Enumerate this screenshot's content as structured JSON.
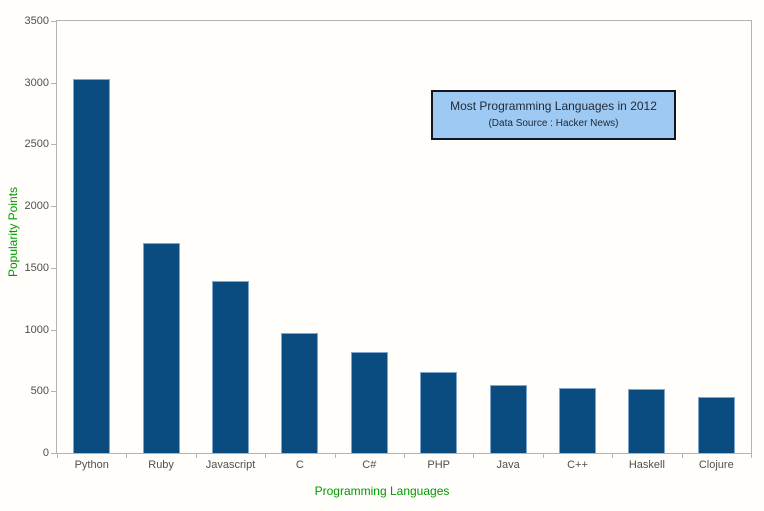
{
  "chart_data": {
    "type": "bar",
    "title": "Most Programming Languages in 2012",
    "subtitle": "(Data Source : Hacker News)",
    "xlabel": "Programming Languages",
    "ylabel": "Popularity Points",
    "categories": [
      "Python",
      "Ruby",
      "Javascript",
      "C",
      "C#",
      "PHP",
      "Java",
      "C++",
      "Haskell",
      "Clojure"
    ],
    "values": [
      3030,
      1700,
      1390,
      970,
      820,
      660,
      550,
      530,
      515,
      450
    ],
    "ylim": [
      0,
      3500
    ],
    "yticks": [
      0,
      500,
      1000,
      1500,
      2000,
      2500,
      3000,
      3500
    ],
    "grid": false,
    "legend": "none",
    "colors": {
      "background": "#fffefa",
      "bar_fill": "#0a4c7f",
      "bar_border": "#7fa7cb",
      "axis_title": "#009900",
      "tick_label": "#4f4f4f",
      "spine": "#b3b3b3",
      "title_box_fill": "#9ec9f3",
      "title_box_border": "#14161f",
      "title_text": "#222b38"
    }
  }
}
